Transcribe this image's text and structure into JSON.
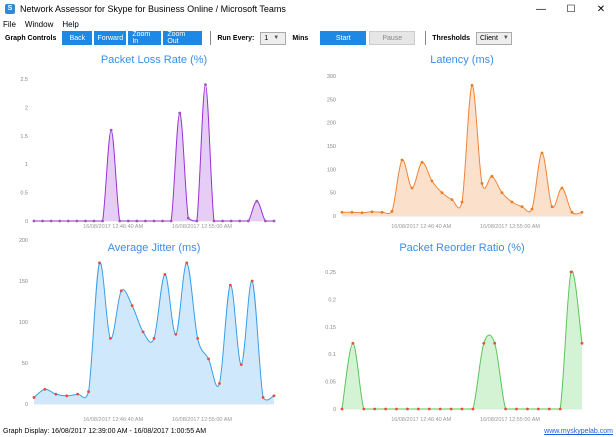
{
  "window": {
    "title": "Network Assessor for Skype for Business Online / Microsoft Teams",
    "icon_label": "S",
    "minimize": "—",
    "maximize": "☐",
    "close": "✕"
  },
  "menu": [
    "File",
    "Window",
    "Help"
  ],
  "toolbar": {
    "graph_controls_label": "Graph Controls",
    "back": "Back",
    "forward": "Forward",
    "zoom_in": "Zoom In",
    "zoom_out": "Zoom Out",
    "run_every_label": "Run Every:",
    "run_every_value": "1",
    "mins_label": "Mins",
    "start": "Start",
    "pause": "Pause",
    "thresholds_label": "Thresholds",
    "thresholds_value": "Client"
  },
  "status": {
    "display": "Graph Display: 16/08/2017 12:39:00 AM - 16/08/2017 1:00:55 AM",
    "link": "www.myskypelab.com"
  },
  "chart_data": [
    {
      "type": "area",
      "title": "Packet Loss Rate (%)",
      "color": "#9b30d9",
      "fill": "#e6cdf5",
      "dot_color": "#9b59b6",
      "ylim": [
        0,
        2.5
      ],
      "yticks": [
        "0",
        "0.5",
        "1",
        "1.5",
        "2",
        "2.5"
      ],
      "xticks": [
        "16/08/2017 12:46:40 AM",
        "16/08/2017 12:55:00 AM"
      ],
      "points": [
        0,
        0,
        0,
        0,
        0,
        0,
        0,
        0,
        0,
        1.6,
        0,
        0,
        0,
        0,
        0,
        0,
        0,
        1.9,
        0.05,
        0,
        2.4,
        0,
        0,
        0,
        0,
        0,
        0.35,
        0,
        0
      ]
    },
    {
      "type": "area",
      "title": "Latency (ms)",
      "color": "#f0843a",
      "fill": "#fbe0cc",
      "dot_color": "#e67e22",
      "ylim": [
        0,
        300
      ],
      "yticks": [
        "0",
        "50",
        "100",
        "150",
        "200",
        "250",
        "300"
      ],
      "xticks": [
        "16/08/2017 12:46:40 AM",
        "16/08/2017 12:55:00 AM"
      ],
      "points": [
        8,
        8,
        7,
        9,
        8,
        10,
        120,
        60,
        115,
        75,
        50,
        35,
        30,
        280,
        70,
        85,
        50,
        30,
        20,
        15,
        135,
        20,
        60,
        8,
        8
      ]
    },
    {
      "type": "area",
      "title": "Average Jitter (ms)",
      "color": "#3a9ee8",
      "fill": "#cfe8fb",
      "dot_color": "#e74c3c",
      "ylim": [
        0,
        200
      ],
      "yticks": [
        "0",
        "50",
        "100",
        "150",
        "200"
      ],
      "xticks": [
        "16/08/2017 12:46:40 AM",
        "16/08/2017 12:55:00 AM"
      ],
      "points": [
        8,
        18,
        12,
        10,
        12,
        15,
        172,
        80,
        138,
        120,
        88,
        80,
        158,
        85,
        172,
        80,
        55,
        25,
        145,
        48,
        150,
        8,
        10
      ]
    },
    {
      "type": "area",
      "title": "Packet Reorder Ratio (%)",
      "color": "#5bc45b",
      "fill": "#d4f3d4",
      "dot_color": "#e74c3c",
      "ylim": [
        0,
        0.25
      ],
      "yticks": [
        "0",
        "0.05",
        "0.1",
        "0.15",
        "0.2",
        "0.25"
      ],
      "xticks": [
        "16/08/2017 12:46:40 AM",
        "16/08/2017 12:55:00 AM"
      ],
      "points": [
        0,
        0.12,
        0,
        0,
        0,
        0,
        0,
        0,
        0,
        0,
        0,
        0,
        0,
        0.12,
        0.12,
        0,
        0,
        0,
        0,
        0,
        0,
        0.25,
        0.12
      ]
    }
  ]
}
